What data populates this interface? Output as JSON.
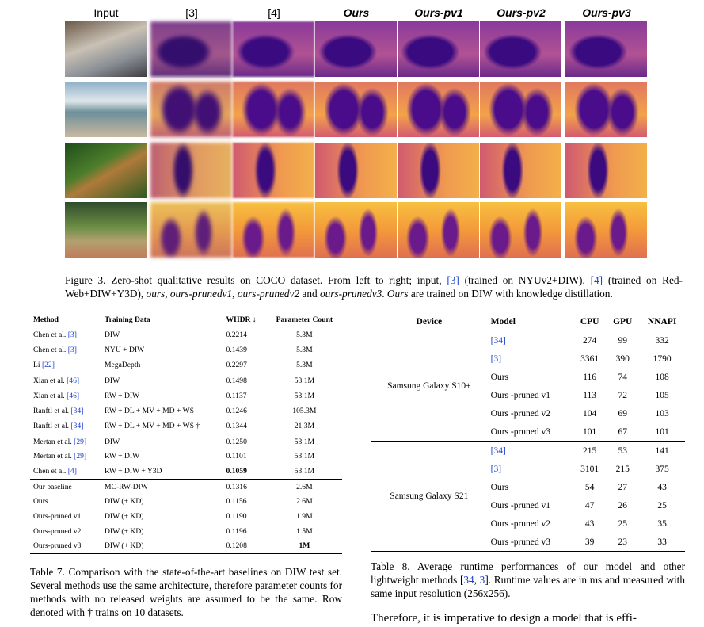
{
  "figure": {
    "column_headers": [
      "Input",
      "[3]",
      "[4]",
      "Ours",
      "Ours-pv1",
      "Ours-pv2",
      "Ours-pv3"
    ],
    "caption": [
      "Figure 3. Zero-shot qualitative results on COCO dataset.  From left to right; input, ",
      "[3]",
      " (trained on NYUv2+DIW), ",
      "[4]",
      " (trained on Red-Web+DIW+Y3D), ",
      "ours",
      ", ",
      "ours-prunedv1",
      ", ",
      "ours-prunedv2",
      " and ",
      "ours-prunedv3",
      ". ",
      "Ours",
      " are trained on DIW with knowledge distillation."
    ]
  },
  "table7": {
    "header": [
      "Method",
      "Training Data",
      "WHDR ↓",
      "Parameter Count"
    ],
    "rows": [
      [
        "Chen et al. [3]",
        "DIW",
        "0.2214",
        "5.3M"
      ],
      [
        "Chen et al. [3]",
        "NYU + DIW",
        "0.1439",
        "5.3M"
      ],
      [
        "Li [22]",
        "MegaDepth",
        "0.2297",
        "5.3M"
      ],
      [
        "Xian et al. [46]",
        "DIW",
        "0.1498",
        "53.1M"
      ],
      [
        "Xian et al. [46]",
        "RW + DIW",
        "0.1137",
        "53.1M"
      ],
      [
        "Ranftl et al. [34]",
        "RW + DL + MV + MD + WS",
        "0.1246",
        "105.3M"
      ],
      [
        "Ranftl et al. [34]",
        "RW + DL + MV + MD + WS †",
        "0.1344",
        "21.3M"
      ],
      [
        "Mertan et al. [29]",
        "DIW",
        "0.1250",
        "53.1M"
      ],
      [
        "Mertan et al. [29]",
        "RW + DIW",
        "0.1101",
        "53.1M"
      ],
      [
        "Chen et al. [4]",
        "RW + DIW + Y3D",
        "0.1059",
        "53.1M"
      ],
      [
        "Our baseline",
        "MC-RW-DIW",
        "0.1316",
        "2.6M"
      ],
      [
        "Ours",
        "DIW (+ KD)",
        "0.1156",
        "2.6M"
      ],
      [
        "Ours-pruned v1",
        "DIW (+ KD)",
        "0.1190",
        "1.9M"
      ],
      [
        "Ours-pruned v2",
        "DIW (+ KD)",
        "0.1196",
        "1.5M"
      ],
      [
        "Ours-pruned v3",
        "DIW (+ KD)",
        "0.1208",
        "1M"
      ]
    ],
    "caption": "Table 7. Comparison with the state-of-the-art baselines on DIW test set. Several methods use the same architecture, therefore parameter counts for methods with no released weights are assumed to be the same. Row denoted with † trains on 10 datasets."
  },
  "table8": {
    "header": [
      "Device",
      "Model",
      "CPU",
      "GPU",
      "NNAPI"
    ],
    "groups": [
      {
        "device": "Samsung Galaxy S10+",
        "rows": [
          [
            "[34]",
            "274",
            "99",
            "332"
          ],
          [
            "[3]",
            "3361",
            "390",
            "1790"
          ],
          [
            "Ours",
            "116",
            "74",
            "108"
          ],
          [
            "Ours -pruned v1",
            "113",
            "72",
            "105"
          ],
          [
            "Ours -pruned v2",
            "104",
            "69",
            "103"
          ],
          [
            "Ours -pruned v3",
            "101",
            "67",
            "101"
          ]
        ]
      },
      {
        "device": "Samsung Galaxy S21",
        "rows": [
          [
            "[34]",
            "215",
            "53",
            "141"
          ],
          [
            "[3]",
            "3101",
            "215",
            "375"
          ],
          [
            "Ours",
            "54",
            "27",
            "43"
          ],
          [
            "Ours -pruned v1",
            "47",
            "26",
            "25"
          ],
          [
            "Ours -pruned v2",
            "43",
            "25",
            "35"
          ],
          [
            "Ours -pruned v3",
            "39",
            "23",
            "33"
          ]
        ]
      }
    ],
    "caption": [
      "Table 8. Average runtime performances of our model and other lightweight methods [",
      "34",
      ", ",
      "3",
      "]. Runtime values are in ms and measured with same input resolution (256x256)."
    ]
  },
  "body_text": "Therefore, it is imperative to design a model that is effi-"
}
